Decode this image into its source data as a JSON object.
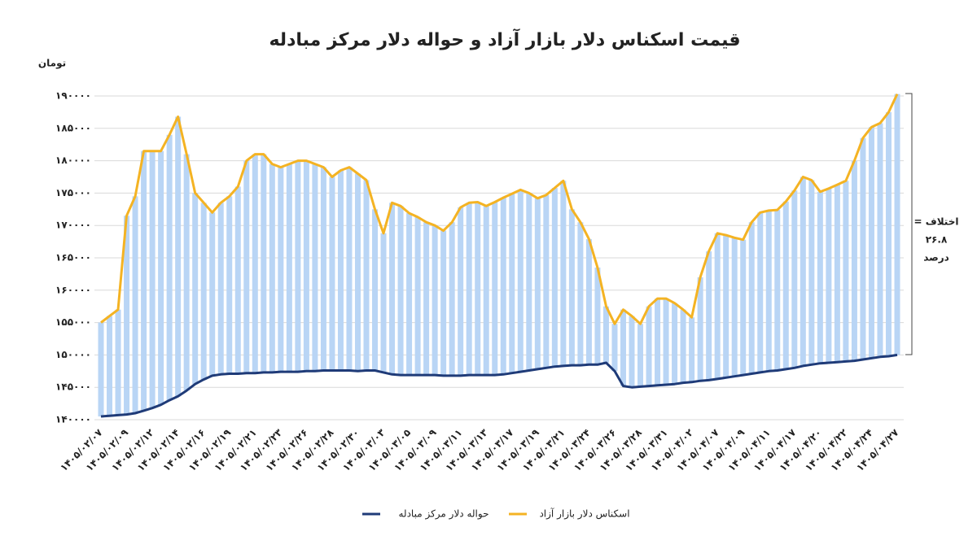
{
  "chart_data": {
    "type": "line",
    "title": "قیمت اسکناس دلار بازار آزاد و حواله دلار مرکز مبادله",
    "y_unit": "تومان",
    "annotation": [
      "اختلاف =",
      "۲۶.۸",
      "درصد"
    ],
    "categories": [
      "۱۴۰۵/۰۲/۰۷",
      null,
      null,
      "۱۴۰۵/۰۲/۰۹",
      null,
      null,
      "۱۴۰۵/۰۲/۱۲",
      null,
      null,
      "۱۴۰۵/۰۲/۱۴",
      null,
      null,
      "۱۴۰۵/۰۲/۱۶",
      null,
      null,
      "۱۴۰۵/۰۲/۱۹",
      null,
      null,
      "۱۴۰۵/۰۲/۲۱",
      null,
      null,
      "۱۴۰۵/۰۲/۲۳",
      null,
      null,
      "۱۴۰۵/۰۲/۲۶",
      null,
      null,
      "۱۴۰۵/۰۲/۲۸",
      null,
      null,
      "۱۴۰۵/۰۲/۳۰",
      null,
      null,
      "۱۴۰۵/۰۳/۰۳",
      null,
      null,
      "۱۴۰۵/۰۳/۰۵",
      null,
      null,
      "۱۴۰۵/۰۳/۰۹",
      null,
      null,
      "۱۴۰۵/۰۳/۱۱",
      null,
      null,
      "۱۴۰۵/۰۳/۱۳",
      null,
      null,
      "۱۴۰۵/۰۳/۱۷",
      null,
      null,
      "۱۴۰۵/۰۳/۱۹",
      null,
      null,
      "۱۴۰۵/۰۳/۲۱",
      null,
      null,
      "۱۴۰۵/۰۳/۲۴",
      null,
      null,
      "۱۴۰۵/۰۳/۲۶",
      null,
      null,
      "۱۴۰۵/۰۳/۲۸",
      null,
      null,
      "۱۴۰۵/۰۳/۳۱",
      null,
      null,
      "۱۴۰۵/۰۴/۰۲",
      null,
      null,
      "۱۴۰۵/۰۴/۰۷",
      null,
      null,
      "۱۴۰۵/۰۴/۰۹",
      null,
      null,
      "۱۴۰۵/۰۴/۱۱",
      null,
      null,
      "۱۴۰۵/۰۴/۱۷",
      null,
      null,
      "۱۴۰۵/۰۴/۲۰",
      null,
      null,
      "۱۴۰۵/۰۴/۲۲",
      null,
      null,
      "۱۴۰۵/۰۴/۲۴",
      null,
      null,
      "۱۴۰۵/۰۴/۲۷"
    ],
    "series": [
      {
        "name": "اسکناس دلار بازار آزاد",
        "color": "#f4b323",
        "values": [
          155000,
          156000,
          157000,
          171500,
          174500,
          181500,
          181500,
          181500,
          184000,
          186800,
          181000,
          175000,
          173500,
          172000,
          173500,
          174500,
          176000,
          180000,
          181000,
          181000,
          179500,
          179000,
          179500,
          180000,
          180000,
          179500,
          179000,
          177500,
          178500,
          179000,
          178000,
          177000,
          172500,
          168800,
          173500,
          173000,
          171900,
          171300,
          170500,
          170000,
          169200,
          170500,
          172800,
          173500,
          173600,
          173000,
          173600,
          174300,
          174900,
          175500,
          175000,
          174200,
          174700,
          175800,
          176900,
          172500,
          170500,
          167900,
          163500,
          157500,
          154800,
          157000,
          156000,
          154800,
          157500,
          158700,
          158700,
          158000,
          157000,
          155800,
          162000,
          166000,
          168800,
          168500,
          168100,
          167800,
          170500,
          172000,
          172300,
          172400,
          173700,
          175400,
          177500,
          177000,
          175200,
          175700,
          176300,
          176900,
          180000,
          183500,
          185200,
          185800,
          187500,
          190300
        ]
      },
      {
        "name": "حواله دلار مرکز مبادله",
        "color": "#1f3b78",
        "values": [
          140500,
          140600,
          140700,
          140800,
          141000,
          141400,
          141800,
          142300,
          143000,
          143600,
          144500,
          145500,
          146200,
          146800,
          147000,
          147100,
          147100,
          147200,
          147200,
          147300,
          147300,
          147400,
          147400,
          147400,
          147500,
          147500,
          147600,
          147600,
          147600,
          147600,
          147500,
          147600,
          147600,
          147300,
          147000,
          146900,
          146900,
          146900,
          146900,
          146900,
          146800,
          146800,
          146800,
          146900,
          146900,
          146900,
          146900,
          147000,
          147200,
          147400,
          147600,
          147800,
          148000,
          148200,
          148300,
          148400,
          148400,
          148500,
          148500,
          148800,
          147500,
          145200,
          145000,
          145100,
          145200,
          145300,
          145400,
          145500,
          145700,
          145800,
          146000,
          146100,
          146300,
          146500,
          146700,
          146900,
          147100,
          147300,
          147500,
          147600,
          147800,
          148000,
          148300,
          148500,
          148700,
          148800,
          148900,
          149000,
          149100,
          149300,
          149500,
          149700,
          149800,
          150000
        ]
      }
    ],
    "hi_lo_color": "#b9d5f5",
    "ylim": [
      140000,
      190000
    ],
    "yticks": [
      {
        "value": 140000,
        "label": "۱۴۰۰۰۰"
      },
      {
        "value": 145000,
        "label": "۱۴۵۰۰۰"
      },
      {
        "value": 150000,
        "label": "۱۵۰۰۰۰"
      },
      {
        "value": 155000,
        "label": "۱۵۵۰۰۰"
      },
      {
        "value": 160000,
        "label": "۱۶۰۰۰۰"
      },
      {
        "value": 165000,
        "label": "۱۶۵۰۰۰"
      },
      {
        "value": 170000,
        "label": "۱۷۰۰۰۰"
      },
      {
        "value": 175000,
        "label": "۱۷۵۰۰۰"
      },
      {
        "value": 180000,
        "label": "۱۸۰۰۰۰"
      },
      {
        "value": 185000,
        "label": "۱۸۵۰۰۰"
      },
      {
        "value": 190000,
        "label": "۱۹۰۰۰۰"
      }
    ],
    "grid": true
  }
}
